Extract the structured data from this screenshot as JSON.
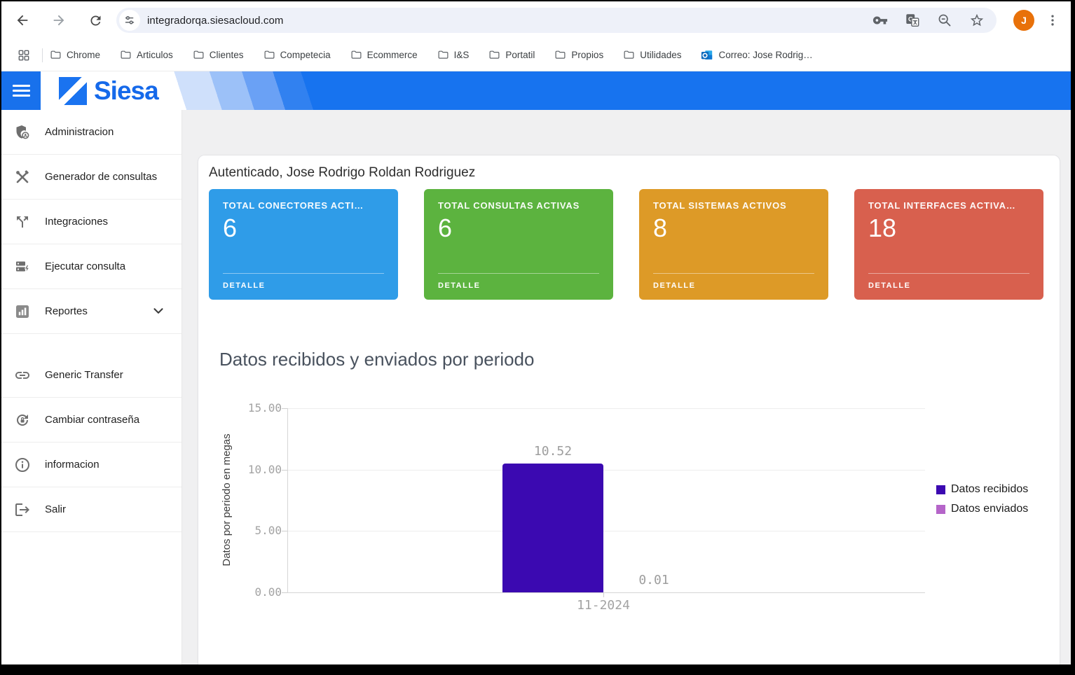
{
  "browser": {
    "url": "integradorqa.siesacloud.com",
    "avatar_initial": "J",
    "bookmarks": [
      {
        "label": "Chrome"
      },
      {
        "label": "Articulos"
      },
      {
        "label": "Clientes"
      },
      {
        "label": "Competecia"
      },
      {
        "label": "Ecommerce"
      },
      {
        "label": "I&S"
      },
      {
        "label": "Portatil"
      },
      {
        "label": "Propios"
      },
      {
        "label": "Utilidades"
      }
    ],
    "outlook_bookmark": "Correo: Jose Rodrig…"
  },
  "header": {
    "brand": "Siesa"
  },
  "sidebar": {
    "items": [
      {
        "label": "Administracion",
        "icon": "shield-person-icon"
      },
      {
        "label": "Generador de consultas",
        "icon": "tools-icon"
      },
      {
        "label": "Integraciones",
        "icon": "split-arrows-icon"
      },
      {
        "label": "Ejecutar consulta",
        "icon": "run-query-icon"
      },
      {
        "label": "Reportes",
        "icon": "bar-chart-icon",
        "expandable": true
      },
      {
        "label": "Generic Transfer",
        "icon": "link-icon"
      },
      {
        "label": "Cambiar contraseña",
        "icon": "lock-reset-icon"
      },
      {
        "label": "informacion",
        "icon": "info-icon"
      },
      {
        "label": "Salir",
        "icon": "logout-icon"
      }
    ]
  },
  "main": {
    "welcome": "Autenticado, Jose Rodrigo Roldan Rodriguez",
    "cards": [
      {
        "title": "TOTAL CONECTORES ACTI…",
        "value": "6",
        "detail": "DETALLE",
        "color": "#2f9ce8"
      },
      {
        "title": "TOTAL CONSULTAS ACTIVAS",
        "value": "6",
        "detail": "DETALLE",
        "color": "#5cb33f"
      },
      {
        "title": "TOTAL SISTEMAS ACTIVOS",
        "value": "8",
        "detail": "DETALLE",
        "color": "#dd9a27"
      },
      {
        "title": "TOTAL INTERFACES ACTIVA…",
        "value": "18",
        "detail": "DETALLE",
        "color": "#d8604e"
      }
    ]
  },
  "chart_data": {
    "type": "bar",
    "title": "Datos recibidos y enviados por periodo",
    "ylabel": "Datos por periodo en megas",
    "xlabel": "",
    "categories": [
      "11-2024"
    ],
    "series": [
      {
        "name": "Datos recibidos",
        "values": [
          10.52
        ],
        "color": "#3b09b1"
      },
      {
        "name": "Datos enviados",
        "values": [
          0.01
        ],
        "color": "#b565c9"
      }
    ],
    "value_labels": [
      "10.52",
      "0.01"
    ],
    "ylim": [
      0,
      15
    ],
    "yticks": [
      "15.00",
      "10.00",
      "5.00",
      "0.00"
    ],
    "grid": true,
    "legend_position": "right"
  }
}
